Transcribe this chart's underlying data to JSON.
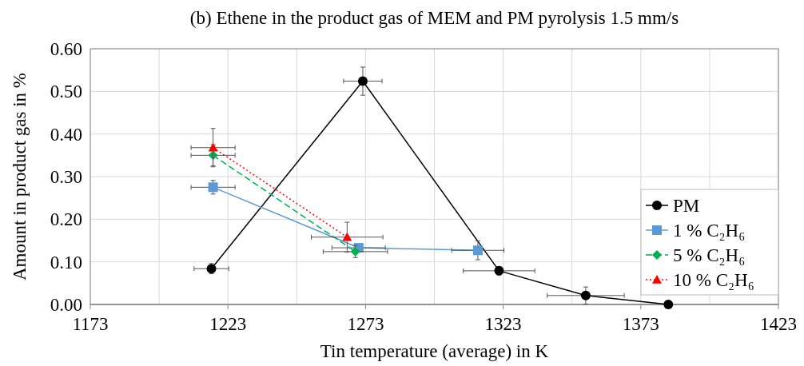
{
  "chart_data": {
    "type": "line",
    "title": "(b) Ethene in the product gas of MEM and PM pyrolysis 1.5 mm/s",
    "xlabel": "Tin temperature (average) in K",
    "ylabel": "Amount in product gas in %",
    "xlim": [
      1173,
      1423
    ],
    "xticks": [
      1173,
      {
        "value": 1198,
        "label": null
      },
      1223,
      {
        "value": 1248,
        "label": null
      },
      1273,
      {
        "value": 1298,
        "label": null
      },
      1323,
      {
        "value": 1348,
        "label": null
      },
      1373,
      {
        "value": 1398,
        "label": null
      },
      1423
    ],
    "ylim": [
      0,
      0.6
    ],
    "yticks": [
      {
        "value": 0,
        "label": "0.00"
      },
      {
        "value": 0.1,
        "label": "0.10"
      },
      {
        "value": 0.2,
        "label": "0.20"
      },
      {
        "value": 0.3,
        "label": "0.30"
      },
      {
        "value": 0.4,
        "label": "0.40"
      },
      {
        "value": 0.5,
        "label": "0.50"
      },
      {
        "value": 0.6,
        "label": "0.60"
      }
    ],
    "grid": true,
    "legend": "bottom right",
    "series": [
      {
        "name": "PM",
        "color": "#000000",
        "marker": "circle",
        "line_style": "solid",
        "x": [
          1217,
          1272,
          1321.5,
          1353,
          1383
        ],
        "values": [
          0.084,
          0.524,
          0.079,
          0.021,
          0
        ],
        "errors": [
          0.012,
          0.033,
          0.01,
          0.02,
          null
        ],
        "xerrors": [
          6.3,
          7,
          13,
          14,
          null
        ]
      },
      {
        "name": "1 % C₂H₆",
        "color": "#5b9bd5",
        "marker": "square",
        "line_style": "solid",
        "x": [
          1217.6,
          1270.5,
          1313.8
        ],
        "values": [
          0.275,
          0.133,
          0.127
        ],
        "errors": [
          0.016,
          null,
          0.022
        ],
        "xerrors": [
          8,
          9.7,
          9.5
        ]
      },
      {
        "name": "5 % C₂H₆",
        "color": "#00b050",
        "marker": "diamond",
        "line_style": "dashed",
        "x": [
          1217.6,
          1269.3
        ],
        "values": [
          0.35,
          0.124
        ],
        "errors": [
          0.025,
          0.014
        ],
        "xerrors": [
          8,
          11.7
        ]
      },
      {
        "name": "10 % C₂H₆",
        "color": "#ff0000",
        "marker": "triangle",
        "line_style": "dotted",
        "x": [
          1217.6,
          1266.3
        ],
        "values": [
          0.368,
          0.158
        ],
        "errors": [
          0.045,
          0.035
        ],
        "xerrors": [
          8,
          13
        ]
      }
    ]
  }
}
